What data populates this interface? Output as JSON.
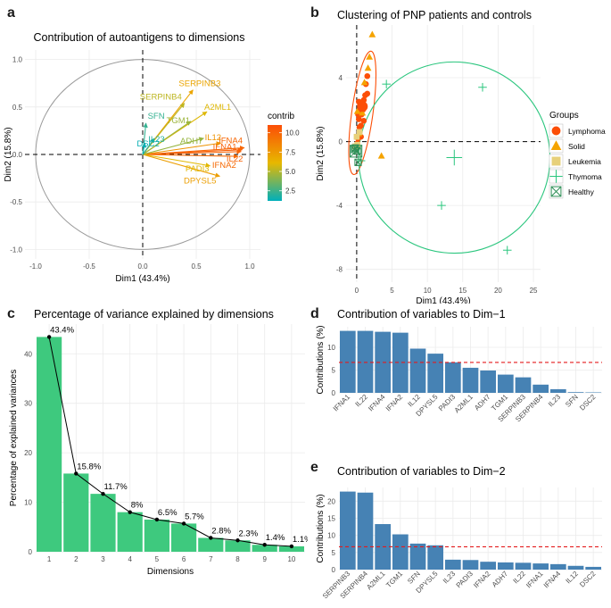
{
  "figure": {
    "panel_labels": [
      "a",
      "b",
      "c",
      "d",
      "e"
    ]
  },
  "chart_data": [
    {
      "id": "a",
      "type": "biplot",
      "title": "Contribution of autoantigens to dimensions",
      "xlabel": "Dim1 (43.4%)",
      "ylabel": "Dim2 (15.8%)",
      "xlim": [
        -1.1,
        1.1
      ],
      "ylim": [
        -1.1,
        1.1
      ],
      "xticks": [
        "-1.0",
        "-0.5",
        "0.0",
        "0.5",
        "1.0"
      ],
      "yticks": [
        "-1.0",
        "-0.5",
        "0.0",
        "0.5",
        "1.0"
      ],
      "legend_title": "contrib",
      "legend_ticks": [
        10.0,
        7.5,
        5.0,
        2.5
      ],
      "legend_labels": [
        "10.0",
        "7.5",
        "5.0",
        "2.5"
      ],
      "legend_range": [
        1.2,
        11.0
      ],
      "palette": [
        "#00AFBB",
        "#E7B800",
        "#FC4E07"
      ],
      "arrows": [
        {
          "name": "IFNA1",
          "x": 0.93,
          "y": 0.05,
          "contrib": 10.2
        },
        {
          "name": "IL22",
          "x": 0.92,
          "y": 0.03,
          "contrib": 10.0
        },
        {
          "name": "IFNA4",
          "x": 0.95,
          "y": 0.07,
          "contrib": 9.9
        },
        {
          "name": "IFNA2",
          "x": 0.89,
          "y": -0.02,
          "contrib": 9.7
        },
        {
          "name": "IL12",
          "x": 0.73,
          "y": 0.12,
          "contrib": 7.8
        },
        {
          "name": "DPYSL5",
          "x": 0.72,
          "y": -0.23,
          "contrib": 7.3
        },
        {
          "name": "PADI3",
          "x": 0.63,
          "y": -0.12,
          "contrib": 6.0
        },
        {
          "name": "A2ML1",
          "x": 0.6,
          "y": 0.45,
          "contrib": 5.9
        },
        {
          "name": "ADH7",
          "x": 0.57,
          "y": 0.17,
          "contrib": 4.4
        },
        {
          "name": "TGM1",
          "x": 0.45,
          "y": 0.35,
          "contrib": 4.5
        },
        {
          "name": "SERPINB3",
          "x": 0.47,
          "y": 0.68,
          "contrib": 7.0
        },
        {
          "name": "SERPINB4",
          "x": 0.39,
          "y": 0.54,
          "contrib": 5.2
        },
        {
          "name": "IL23",
          "x": 0.11,
          "y": 0.17,
          "contrib": 1.9
        },
        {
          "name": "SFN",
          "x": 0.03,
          "y": 0.33,
          "contrib": 2.3
        },
        {
          "name": "DSC2",
          "x": 0.02,
          "y": 0.12,
          "contrib": 1.4
        }
      ]
    },
    {
      "id": "b",
      "type": "scatter",
      "title": "Clustering of PNP patients and controls",
      "xlabel": "Dim1 (43.4%)",
      "ylabel": "Dim2 (15.8%)",
      "xlim": [
        -1.5,
        26
      ],
      "ylim": [
        -8.8,
        7.3
      ],
      "xticks": [
        0,
        5,
        10,
        15,
        20,
        25
      ],
      "xtick_labels": [
        "0",
        "5",
        "10",
        "15",
        "20",
        "25"
      ],
      "yticks": [
        4,
        0,
        -4,
        -8
      ],
      "ytick_labels": [
        "4",
        "0",
        "-4",
        "-8"
      ],
      "legend_title": "Groups",
      "groups": [
        {
          "name": "Lymphoma",
          "color": "#FC4E07",
          "shape": "circle"
        },
        {
          "name": "Solid",
          "color": "#F5A300",
          "shape": "triangle"
        },
        {
          "name": "Leukemia",
          "color": "#E7D07A",
          "shape": "square"
        },
        {
          "name": "Thymoma",
          "color": "#2BC67E",
          "shape": "plus"
        },
        {
          "name": "Healthy",
          "color": "#2F8F57",
          "shape": "boxx"
        }
      ],
      "points": {
        "Lymphoma": [
          [
            0.2,
            0.2
          ],
          [
            0.4,
            0.6
          ],
          [
            0.6,
            1.0
          ],
          [
            0.3,
            1.4
          ],
          [
            0.7,
            1.7
          ],
          [
            0.5,
            2.0
          ],
          [
            0.8,
            2.3
          ],
          [
            1.0,
            2.6
          ],
          [
            1.2,
            2.9
          ],
          [
            1.5,
            3.0
          ],
          [
            1.3,
            3.6
          ],
          [
            1.5,
            4.1
          ],
          [
            0.9,
            2.0
          ],
          [
            0.4,
            0.9
          ],
          [
            0.1,
            -0.1
          ],
          [
            0.6,
            0.3
          ],
          [
            1.0,
            1.3
          ],
          [
            0.2,
            1.7
          ],
          [
            0.3,
            2.5
          ]
        ],
        "Solid": [
          [
            1.8,
            5.3
          ],
          [
            2.2,
            6.7
          ],
          [
            1.1,
            3.7
          ],
          [
            0.8,
            1.8
          ],
          [
            3.5,
            -0.9
          ],
          [
            0.3,
            0.5
          ],
          [
            0.1,
            1.9
          ],
          [
            1.6,
            4.6
          ]
        ],
        "Leukemia": [
          [
            -0.2,
            -0.3
          ],
          [
            0.1,
            -0.2
          ],
          [
            0.4,
            0.6
          ],
          [
            0.0,
            0.3
          ]
        ],
        "Thymoma": [
          [
            4.2,
            3.6
          ],
          [
            12.0,
            -4.0
          ],
          [
            17.8,
            3.4
          ],
          [
            21.3,
            -6.8
          ],
          [
            0.6,
            -1.2
          ]
        ],
        "Healthy": [
          [
            -0.3,
            -0.5
          ],
          [
            0.1,
            -0.6
          ],
          [
            -0.2,
            -0.4
          ],
          [
            0.2,
            -1.3
          ]
        ]
      },
      "centroids": [
        {
          "group": "Lymphoma",
          "x": 0.8,
          "y": 2.2
        },
        {
          "group": "Healthy",
          "x": -0.1,
          "y": -0.6
        },
        {
          "group": "Thymoma",
          "x": 13.8,
          "y": -1.0
        }
      ],
      "ellipses": [
        {
          "group": "Lymphoma",
          "cx": 0.8,
          "cy": 1.8,
          "rx": 1.5,
          "ry": 3.9,
          "rot": 8
        },
        {
          "group": "Thymoma",
          "cx": 13.8,
          "cy": -1.0,
          "rx": 13.5,
          "ry": 6.0,
          "rot": -62
        }
      ]
    },
    {
      "id": "c",
      "type": "bar",
      "title": "Percentage of variance explained by dimensions",
      "xlabel": "Dimensions",
      "ylabel": "Percentage of explained variances",
      "categories": [
        "1",
        "2",
        "3",
        "4",
        "5",
        "6",
        "7",
        "8",
        "9",
        "10"
      ],
      "values": [
        43.4,
        15.8,
        11.7,
        8.0,
        6.5,
        5.7,
        2.8,
        2.3,
        1.4,
        1.1
      ],
      "value_labels": [
        "43.4%",
        "15.8%",
        "11.7%",
        "8%",
        "6.5%",
        "5.7%",
        "2.8%",
        "2.3%",
        "1.4%",
        "1.1%"
      ],
      "ylim": [
        0,
        46
      ],
      "yticks": [
        0,
        10,
        20,
        30,
        40
      ],
      "ytick_labels": [
        "0",
        "10",
        "20",
        "30",
        "40"
      ],
      "bar_color": "#3EC97E"
    },
    {
      "id": "d",
      "type": "bar",
      "title": "Contribution of variables to Dim−1",
      "xlabel": "",
      "ylabel": "Contributions (%)",
      "categories": [
        "IFNA1",
        "IL22",
        "IFNA4",
        "IFNA2",
        "IL12",
        "DPYSL5",
        "PADI3",
        "A2ML1",
        "ADH7",
        "TGM1",
        "SERPINB3",
        "SERPINB4",
        "IL23",
        "SFN",
        "DSC2"
      ],
      "values": [
        13.6,
        13.6,
        13.4,
        13.2,
        9.7,
        8.6,
        6.7,
        5.5,
        4.9,
        4.0,
        3.4,
        1.8,
        0.8,
        0.15,
        0.1
      ],
      "reference": 6.67,
      "ylim": [
        0,
        14.5
      ],
      "yticks": [
        0,
        5,
        10
      ],
      "ytick_labels": [
        "0",
        "5",
        "10"
      ],
      "bar_color": "#4682B4",
      "ref_color": "#E41A1C"
    },
    {
      "id": "e",
      "type": "bar",
      "title": "Contribution of variables to Dim−2",
      "xlabel": "",
      "ylabel": "Contributions (%)",
      "categories": [
        "SERPINB3",
        "SERPINB4",
        "A2ML1",
        "TGM1",
        "SFN",
        "DPYSL5",
        "IL23",
        "PADI3",
        "IFNA2",
        "ADH7",
        "IL22",
        "IFNA1",
        "IFNA4",
        "IL12",
        "DSC2"
      ],
      "values": [
        22.8,
        22.5,
        13.3,
        10.3,
        7.6,
        7.1,
        2.9,
        2.8,
        2.3,
        2.1,
        2.0,
        1.8,
        1.6,
        1.1,
        0.8
      ],
      "reference": 6.67,
      "ylim": [
        0,
        24
      ],
      "yticks": [
        0,
        5,
        10,
        15,
        20
      ],
      "ytick_labels": [
        "0",
        "5",
        "10",
        "15",
        "20"
      ],
      "bar_color": "#4682B4",
      "ref_color": "#E41A1C"
    }
  ]
}
